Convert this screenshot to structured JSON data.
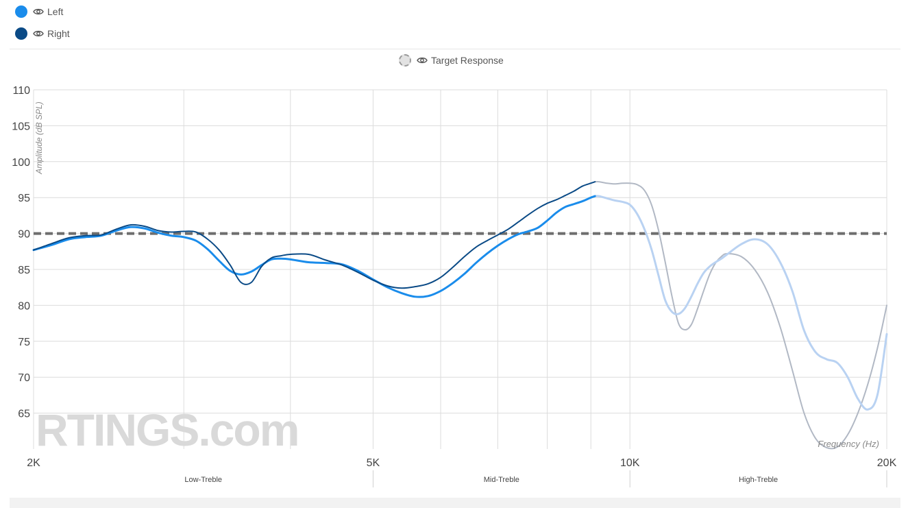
{
  "legend": {
    "items": [
      {
        "label": "Left",
        "color": "#1a8ceb"
      },
      {
        "label": "Right",
        "color": "#0a4a86"
      }
    ],
    "target": {
      "label": "Target Response"
    }
  },
  "watermark": "RTINGS.com",
  "chart_data": {
    "type": "line",
    "ylabel": "Amplitude (dB SPL)",
    "xlabel": "Frequency (Hz)",
    "x_scale": "log",
    "xlim": [
      2000,
      20000
    ],
    "ylim": [
      60,
      110
    ],
    "y_ticks": [
      110,
      105,
      100,
      95,
      90,
      85,
      80,
      75,
      70,
      65
    ],
    "x_ticks": [
      {
        "value": 2000,
        "label": "2K"
      },
      {
        "value": 5000,
        "label": "5K"
      },
      {
        "value": 10000,
        "label": "10K"
      },
      {
        "value": 20000,
        "label": "20K"
      }
    ],
    "x_grid": [
      2000,
      3000,
      4000,
      5000,
      6000,
      7000,
      8000,
      9000,
      10000,
      20000
    ],
    "regions": [
      {
        "label": "Low-Treble",
        "from": 2000,
        "to": 5000
      },
      {
        "label": "Mid-Treble",
        "from": 5000,
        "to": 10000
      },
      {
        "label": "High-Treble",
        "from": 10000,
        "to": 20000
      }
    ],
    "target_level": 90,
    "faded_from": 9100,
    "grid": true,
    "series": [
      {
        "name": "Left",
        "color": "#1a8ceb",
        "faded_color": "#b9d2f2",
        "x": [
          2000,
          2100,
          2200,
          2300,
          2400,
          2500,
          2600,
          2700,
          2800,
          2900,
          3000,
          3100,
          3200,
          3300,
          3400,
          3500,
          3600,
          3700,
          3800,
          3900,
          4000,
          4200,
          4400,
          4600,
          4800,
          5000,
          5200,
          5400,
          5600,
          5800,
          6000,
          6200,
          6400,
          6600,
          6800,
          7000,
          7200,
          7400,
          7600,
          7800,
          8000,
          8200,
          8400,
          8600,
          8800,
          9000,
          9100,
          9200,
          9400,
          9600,
          9800,
          10000,
          10200,
          10400,
          10600,
          10800,
          11000,
          11200,
          11400,
          11600,
          11800,
          12000,
          12200,
          12400,
          12600,
          12800,
          13000,
          13500,
          14000,
          14500,
          15000,
          15500,
          16000,
          16500,
          17000,
          17500,
          18000,
          18500,
          19000,
          19500,
          20000
        ],
        "y": [
          87.7,
          88.4,
          89.2,
          89.5,
          89.7,
          90.4,
          90.9,
          90.7,
          90.1,
          89.7,
          89.5,
          89.0,
          87.8,
          86.2,
          84.8,
          84.3,
          84.7,
          85.6,
          86.4,
          86.5,
          86.4,
          86.0,
          85.9,
          85.7,
          84.8,
          83.6,
          82.5,
          81.7,
          81.2,
          81.3,
          82.0,
          83.1,
          84.4,
          85.9,
          87.2,
          88.3,
          89.2,
          89.9,
          90.3,
          90.8,
          91.8,
          92.9,
          93.7,
          94.1,
          94.5,
          95.0,
          95.2,
          95.2,
          94.9,
          94.6,
          94.4,
          94.0,
          92.7,
          90.6,
          87.8,
          84.2,
          80.7,
          79.1,
          78.8,
          79.6,
          81.2,
          83.0,
          84.5,
          85.4,
          86.0,
          86.5,
          87.1,
          88.5,
          89.2,
          88.5,
          86.0,
          82.0,
          76.5,
          73.5,
          72.5,
          72.0,
          70.0,
          67.0,
          65.5,
          67.5,
          76.0
        ]
      },
      {
        "name": "Right",
        "color": "#0a4a86",
        "faded_color": "#b1b8c4",
        "x": [
          2000,
          2100,
          2200,
          2300,
          2400,
          2500,
          2600,
          2700,
          2800,
          2900,
          3000,
          3100,
          3200,
          3300,
          3400,
          3500,
          3600,
          3700,
          3800,
          3900,
          4000,
          4200,
          4400,
          4600,
          4800,
          5000,
          5200,
          5400,
          5600,
          5800,
          6000,
          6200,
          6400,
          6600,
          6800,
          7000,
          7200,
          7400,
          7600,
          7800,
          8000,
          8200,
          8400,
          8600,
          8800,
          9000,
          9100,
          9200,
          9400,
          9600,
          9800,
          10000,
          10200,
          10400,
          10600,
          10800,
          11000,
          11200,
          11400,
          11600,
          11800,
          12000,
          12200,
          12400,
          12600,
          12800,
          13000,
          13500,
          14000,
          14500,
          15000,
          15500,
          16000,
          16500,
          17000,
          17500,
          18000,
          18500,
          19000,
          19500,
          20000
        ],
        "y": [
          87.7,
          88.6,
          89.4,
          89.7,
          89.8,
          90.6,
          91.2,
          91.0,
          90.4,
          90.2,
          90.3,
          90.2,
          89.2,
          87.7,
          85.6,
          83.2,
          83.2,
          85.4,
          86.6,
          86.9,
          87.1,
          87.1,
          86.3,
          85.6,
          84.6,
          83.5,
          82.7,
          82.4,
          82.6,
          83.0,
          83.9,
          85.3,
          86.8,
          88.1,
          89.0,
          89.8,
          90.6,
          91.6,
          92.6,
          93.5,
          94.2,
          94.7,
          95.3,
          95.9,
          96.6,
          97.0,
          97.2,
          97.2,
          97.0,
          96.9,
          97.0,
          97.0,
          96.8,
          96.0,
          94.0,
          90.5,
          86.0,
          81.3,
          77.5,
          76.6,
          77.3,
          79.5,
          82.0,
          84.3,
          85.9,
          86.8,
          87.2,
          86.8,
          85.0,
          81.8,
          77.0,
          71.0,
          65.0,
          61.5,
          60.2,
          60.3,
          62.0,
          65.0,
          69.0,
          74.0,
          80.0
        ]
      }
    ]
  }
}
